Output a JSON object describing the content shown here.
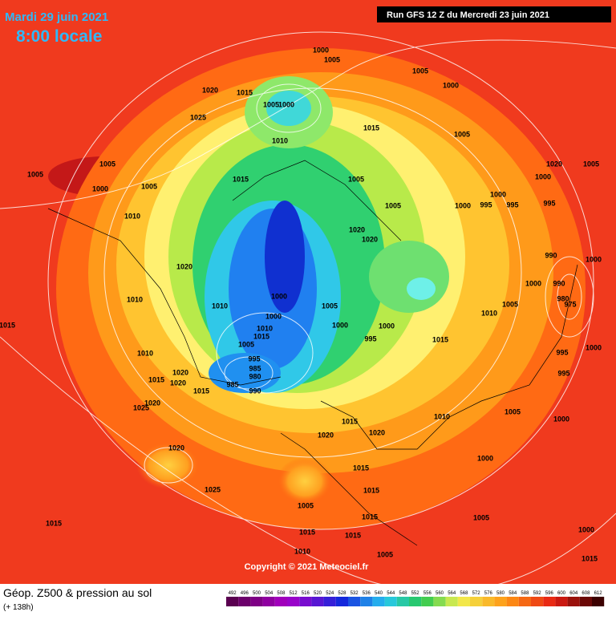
{
  "header": {
    "date": "Mardi 29 juin 2021",
    "time": "8:00 locale",
    "run": "Run GFS 12 Z du Mercredi 23 juin 2021"
  },
  "footer": {
    "title": "Géop. Z500 & pression au sol",
    "lead": "(+ 138h)",
    "copyright": "Copyright © 2021 Meteociel.fr"
  },
  "colorbar": {
    "labels": [
      492,
      496,
      500,
      504,
      508,
      512,
      516,
      520,
      524,
      528,
      532,
      536,
      540,
      544,
      548,
      552,
      556,
      560,
      564,
      568,
      572,
      576,
      580,
      584,
      588,
      592,
      596,
      600,
      604,
      608,
      612
    ]
  },
  "isobar_labels": [
    1000,
    1005,
    1005,
    1000,
    1020,
    1015,
    1005,
    1000,
    1025,
    1015,
    1005,
    1010,
    1005,
    1005,
    1000,
    1005,
    1015,
    1005,
    1000,
    1020,
    1005,
    1000,
    1000,
    995,
    995,
    995,
    1010,
    1005,
    1020,
    1020,
    990,
    1000,
    1020,
    1010,
    1010,
    1000,
    1005,
    1000,
    990,
    980,
    975,
    1005,
    1010,
    1000,
    1000,
    1000,
    1015,
    1015,
    995,
    1010,
    1015,
    1005,
    1010,
    995,
    985,
    980,
    985,
    990,
    1020,
    1020,
    1015,
    1015,
    995,
    995,
    1000,
    1020,
    1025,
    1005,
    1010,
    1000,
    1015,
    1020,
    1020,
    1020,
    1000,
    1015,
    1025,
    1015,
    1015,
    1005,
    1015,
    1015,
    1005,
    1000,
    1010,
    1005,
    1015,
    1015
  ]
}
